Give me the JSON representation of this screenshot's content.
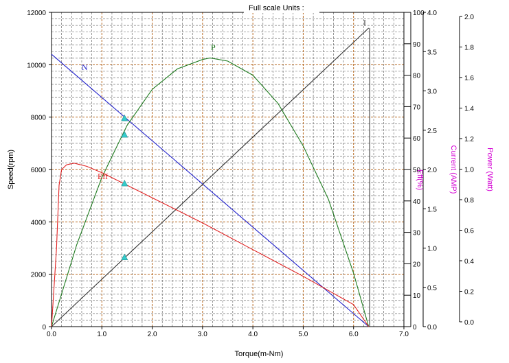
{
  "chart_data": {
    "type": "line",
    "title": "Full scale  Units :",
    "xlabel": "Torque(m-Nm)",
    "xlim": [
      0,
      7
    ],
    "x_ticks": [
      "0.0",
      "1.0",
      "2.0",
      "3.0",
      "4.0",
      "5.0",
      "6.0",
      "7.0"
    ],
    "axes": {
      "speed": {
        "label": "Speed(rpm)",
        "lim": [
          0,
          12000
        ],
        "ticks": [
          "0",
          "2000",
          "4000",
          "6000",
          "8000",
          "10000",
          "12000"
        ]
      },
      "eff": {
        "label": "Eff(%)",
        "lim": [
          0,
          100
        ],
        "ticks": [
          "0",
          "10",
          "20",
          "30",
          "40",
          "50",
          "60",
          "70",
          "80",
          "90",
          "100"
        ]
      },
      "current": {
        "label": "Current (AMP)",
        "lim": [
          0,
          4.0
        ],
        "ticks": [
          "0.0",
          "0.5",
          "1.0",
          "1.5",
          "2.0",
          "2.5",
          "3.0",
          "3.5",
          "4.0"
        ]
      },
      "power": {
        "label": "Power (Watt)",
        "lim": [
          0,
          2.0
        ],
        "ticks": [
          "0.0",
          "0.2",
          "0.4",
          "0.6",
          "0.8",
          "1.0",
          "1.2",
          "1.4",
          "1.6",
          "1.8",
          "2.0"
        ]
      }
    },
    "grid": true,
    "series": [
      {
        "name": "N",
        "axis": "speed",
        "color": "#2222cc",
        "x": [
          0,
          6.3
        ],
        "y": [
          10400,
          0
        ]
      },
      {
        "name": "I",
        "axis": "current",
        "color": "#333333",
        "x": [
          0,
          6.3
        ],
        "y": [
          0,
          3.8
        ]
      },
      {
        "name": "P",
        "axis": "power",
        "color": "#1e7a1e",
        "x": [
          0,
          0.5,
          1.0,
          1.5,
          2.0,
          2.5,
          3.0,
          3.15,
          3.5,
          4.0,
          4.5,
          5.0,
          5.5,
          6.0,
          6.3
        ],
        "y": [
          0,
          0.52,
          0.95,
          1.28,
          1.51,
          1.64,
          1.7,
          1.71,
          1.69,
          1.6,
          1.42,
          1.15,
          0.81,
          0.34,
          0
        ]
      },
      {
        "name": "Eff",
        "axis": "eff",
        "color": "#e02020",
        "x": [
          0,
          0.1,
          0.15,
          0.2,
          0.3,
          0.45,
          0.7,
          1.0,
          1.5,
          2.0,
          3.0,
          4.0,
          5.0,
          6.0,
          6.3
        ],
        "y": [
          0,
          25,
          45,
          50,
          51.5,
          52,
          51,
          49,
          45,
          41,
          33,
          24.5,
          16,
          7,
          0
        ]
      }
    ],
    "markers": {
      "x": 1.45,
      "points": [
        {
          "axis": "speed",
          "y": 7950
        },
        {
          "axis": "eff",
          "y": 61
        },
        {
          "axis": "eff",
          "y": 45.5
        },
        {
          "axis": "current",
          "y": 0.88
        }
      ],
      "color": "#33cccc"
    },
    "vertical_line": {
      "x": 6.3,
      "axis_top": 3.8
    }
  }
}
